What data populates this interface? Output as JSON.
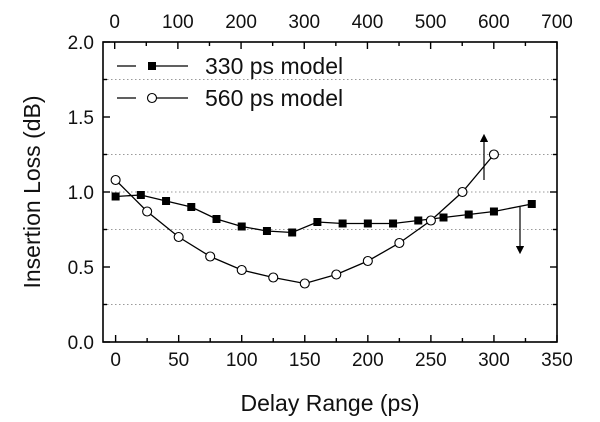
{
  "chart_data": {
    "type": "line",
    "xlabel": "Delay Range (ps)",
    "ylabel": "Insertion Loss (dB)",
    "xlim": [
      -10,
      350
    ],
    "ylim": [
      0.0,
      2.0
    ],
    "x_ticks": [
      "0",
      "50",
      "100",
      "150",
      "200",
      "250",
      "300",
      "350"
    ],
    "y_ticks": [
      "0.0",
      "0.5",
      "1.0",
      "1.5",
      "2.0"
    ],
    "top_axis": {
      "xlim": [
        -18.5,
        700
      ],
      "ticks": [
        "0",
        "100",
        "200",
        "300",
        "400",
        "500",
        "600",
        "700"
      ]
    },
    "grid": "dotted horizontal at y = 0.25, 0.75, 1.0, 1.25, 1.75",
    "legend_position": "top-left",
    "series": [
      {
        "name": "330 ps model",
        "marker": "filled-square",
        "x": [
          0,
          20,
          40,
          60,
          80,
          100,
          120,
          140,
          160,
          180,
          200,
          220,
          240,
          260,
          280,
          300,
          330
        ],
        "y": [
          0.97,
          0.98,
          0.94,
          0.9,
          0.82,
          0.77,
          0.74,
          0.73,
          0.8,
          0.79,
          0.79,
          0.79,
          0.81,
          0.83,
          0.85,
          0.87,
          0.92
        ],
        "axis_arrow": "down (bottom axis)"
      },
      {
        "name": "560 ps model",
        "marker": "open-circle",
        "x": [
          0,
          25,
          50,
          75,
          100,
          125,
          150,
          175,
          200,
          225,
          250,
          275,
          300
        ],
        "y": [
          1.08,
          0.87,
          0.7,
          0.57,
          0.48,
          0.43,
          0.39,
          0.45,
          0.54,
          0.66,
          0.81,
          1.0,
          1.25
        ],
        "axis_arrow": "up (top axis)"
      }
    ]
  }
}
